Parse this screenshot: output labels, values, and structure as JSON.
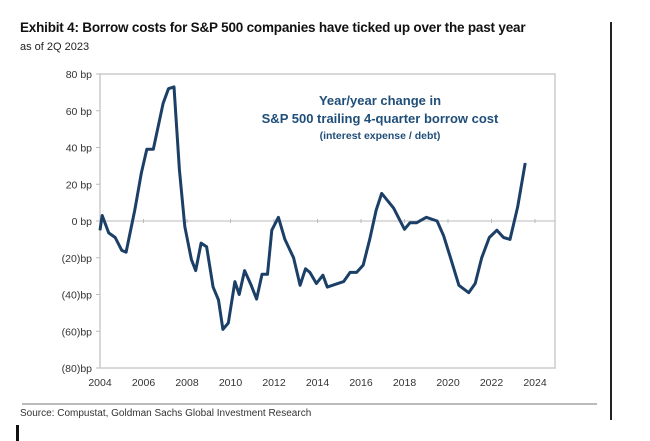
{
  "title": "Exhibit 4: Borrow costs for S&P 500 companies have ticked up over the past year",
  "subtitle": "as of 2Q 2023",
  "source": "Source: Compustat, Goldman Sachs Global Investment Research",
  "chart_data": {
    "type": "line",
    "title": "Exhibit 4: Borrow costs for S&P 500 companies have ticked up over the past year",
    "annotation": [
      "Year/year change in",
      "S&P 500 trailing 4-quarter borrow cost",
      "(interest expense / debt)"
    ],
    "xlabel": "",
    "ylabel": "",
    "xlim": [
      2004,
      2025
    ],
    "ylim": [
      -80,
      80
    ],
    "x_ticks": [
      "2004",
      "2006",
      "2008",
      "2010",
      "2012",
      "2014",
      "2016",
      "2018",
      "2020",
      "2022",
      "2024"
    ],
    "y_ticks": [
      {
        "value": 80,
        "label": "80 bp"
      },
      {
        "value": 60,
        "label": "60 bp"
      },
      {
        "value": 40,
        "label": "40 bp"
      },
      {
        "value": 20,
        "label": "20 bp"
      },
      {
        "value": 0,
        "label": "0 bp"
      },
      {
        "value": -20,
        "label": "(20)bp"
      },
      {
        "value": -40,
        "label": "(40)bp"
      },
      {
        "value": -60,
        "label": "(60)bp"
      },
      {
        "value": -80,
        "label": "(80)bp"
      }
    ],
    "grid": "zero line only",
    "line_color": "#1b3f66",
    "annotation_color": "#1f4e79",
    "series": [
      {
        "x": [
          2004.0,
          2004.1,
          2004.4,
          2004.7,
          2005.0,
          2005.2,
          2005.6,
          2005.9,
          2006.15,
          2006.45,
          2006.9,
          2007.15,
          2007.4,
          2007.65,
          2007.9,
          2008.2,
          2008.4,
          2008.65,
          2008.9,
          2009.2,
          2009.45,
          2009.65,
          2009.9,
          2010.2,
          2010.4,
          2010.65,
          2010.95,
          2011.2,
          2011.45,
          2011.7,
          2011.9,
          2012.2,
          2012.5,
          2012.9,
          2013.2,
          2013.45,
          2013.65,
          2013.95,
          2014.25,
          2014.45,
          2015.2,
          2015.5,
          2015.8,
          2016.1,
          2016.4,
          2016.7,
          2016.95,
          2017.5,
          2018.0,
          2018.25,
          2018.55,
          2019.0,
          2019.5,
          2019.8,
          2020.1,
          2020.5,
          2020.95,
          2021.25,
          2021.55,
          2021.9,
          2022.25,
          2022.55,
          2022.85,
          2023.2,
          2023.55
        ],
        "y": [
          -5,
          3,
          -6.5,
          -9,
          -16,
          -17,
          6,
          26,
          39,
          39,
          64,
          72,
          73,
          28,
          -3,
          -21,
          -27,
          -12,
          -14,
          -36,
          -43,
          -59,
          -55.5,
          -33,
          -40,
          -27,
          -35,
          -42.5,
          -29,
          -29,
          -5,
          2,
          -10,
          -20,
          -35,
          -26,
          -28,
          -34,
          -29.5,
          -36,
          -33,
          -28,
          -28,
          -24,
          -10,
          6,
          15,
          7,
          -4.5,
          -1,
          -1,
          2,
          0,
          -8,
          -19.5,
          -35,
          -39,
          -34,
          -20,
          -9,
          -5,
          -9,
          -10,
          7.5,
          31.5
        ]
      }
    ]
  }
}
